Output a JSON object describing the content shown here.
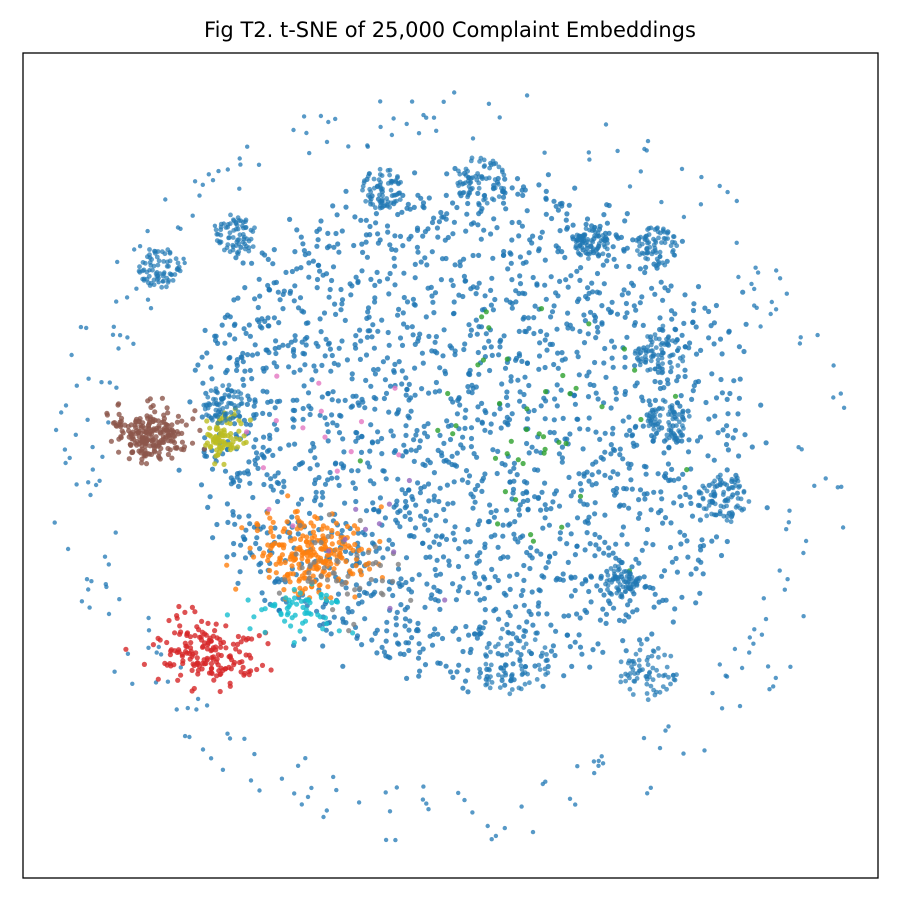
{
  "chart_data": {
    "type": "scatter",
    "title": "Fig T2. t-SNE of 25,000 Complaint Embeddings",
    "xlabel": "",
    "ylabel": "",
    "xlim": [
      -100,
      100
    ],
    "ylim": [
      -100,
      100
    ],
    "axis_ticks": "hidden",
    "grid": false,
    "legend": "none",
    "point_count_shown_in_title": 25000,
    "series": [
      {
        "color": "#1f77b4",
        "role": "dominant cluster (bulk of points)",
        "centroid": [
          5,
          8
        ],
        "spread": [
          42,
          38
        ],
        "approx_points": 2100
      },
      {
        "color": "#8c564b",
        "centroid": [
          -70,
          8
        ],
        "spread": [
          8,
          6
        ],
        "approx_points": 220
      },
      {
        "color": "#bcbd22",
        "centroid": [
          -53,
          7
        ],
        "spread": [
          4,
          5
        ],
        "approx_points": 80
      },
      {
        "color": "#ff7f0e",
        "centroid": [
          -32,
          -22
        ],
        "spread": [
          12,
          9
        ],
        "approx_points": 240
      },
      {
        "color": "#d62728",
        "centroid": [
          -57,
          -45
        ],
        "spread": [
          11,
          8
        ],
        "approx_points": 170
      },
      {
        "color": "#17becf",
        "centroid": [
          -35,
          -35
        ],
        "spread": [
          10,
          6
        ],
        "approx_points": 60
      },
      {
        "color": "#2ca02c",
        "centroid": [
          20,
          10
        ],
        "spread": [
          25,
          25
        ],
        "approx_points": 45
      },
      {
        "color": "#7f7f7f",
        "centroid": [
          -25,
          -25
        ],
        "spread": [
          15,
          10
        ],
        "approx_points": 50
      },
      {
        "color": "#e377c2",
        "centroid": [
          -30,
          5
        ],
        "spread": [
          20,
          20
        ],
        "approx_points": 15
      },
      {
        "color": "#9467bd",
        "centroid": [
          -20,
          -15
        ],
        "spread": [
          20,
          20
        ],
        "approx_points": 10
      }
    ],
    "sub_clusters": [
      {
        "color": "#1f77b4",
        "center": [
          -50,
          56
        ],
        "radius": 5
      },
      {
        "color": "#1f77b4",
        "center": [
          -68,
          48
        ],
        "radius": 5
      },
      {
        "color": "#1f77b4",
        "center": [
          7,
          69
        ],
        "radius": 6
      },
      {
        "color": "#1f77b4",
        "center": [
          -16,
          67
        ],
        "radius": 5
      },
      {
        "color": "#1f77b4",
        "center": [
          33,
          54
        ],
        "radius": 4
      },
      {
        "color": "#1f77b4",
        "center": [
          48,
          53
        ],
        "radius": 5
      },
      {
        "color": "#1f77b4",
        "center": [
          49,
          28
        ],
        "radius": 6
      },
      {
        "color": "#1f77b4",
        "center": [
          51,
          11
        ],
        "radius": 5
      },
      {
        "color": "#1f77b4",
        "center": [
          64,
          -8
        ],
        "radius": 6
      },
      {
        "color": "#1f77b4",
        "center": [
          40,
          -28
        ],
        "radius": 4
      },
      {
        "color": "#1f77b4",
        "center": [
          46,
          -50
        ],
        "radius": 7
      },
      {
        "color": "#1f77b4",
        "center": [
          15,
          -48
        ],
        "radius": 9
      },
      {
        "color": "#1f77b4",
        "center": [
          -53,
          15
        ],
        "radius": 5
      }
    ]
  }
}
